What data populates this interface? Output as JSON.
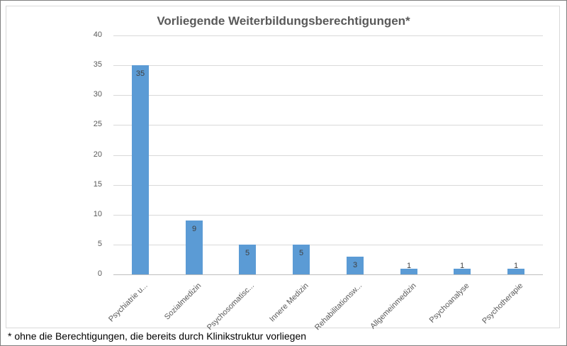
{
  "chart_data": {
    "type": "bar",
    "title": "Vorliegende Weiterbildungsberechtigungen*",
    "xlabel": "",
    "ylabel": "",
    "ylim": [
      0,
      40
    ],
    "yticks": [
      "0",
      "5",
      "10",
      "15",
      "20",
      "25",
      "30",
      "35",
      "40"
    ],
    "categories": [
      "Psychiatrie u...",
      "Sozialmedizin",
      "Psychosomatisc...",
      "Innere Medizin",
      "Rehabilitationsw...",
      "Allgemeinmedizin",
      "Psychoanalyse",
      "Psychotherapie"
    ],
    "values": [
      35,
      9,
      5,
      5,
      3,
      1,
      1,
      1
    ],
    "value_labels": [
      "35",
      "9",
      "5",
      "5",
      "3",
      "1",
      "1",
      "1"
    ],
    "bar_color": "#5b9bd5",
    "grid": true,
    "legend": "none"
  },
  "footnote": "* ohne die Berechtigungen, die bereits durch Klinikstruktur vorliegen"
}
